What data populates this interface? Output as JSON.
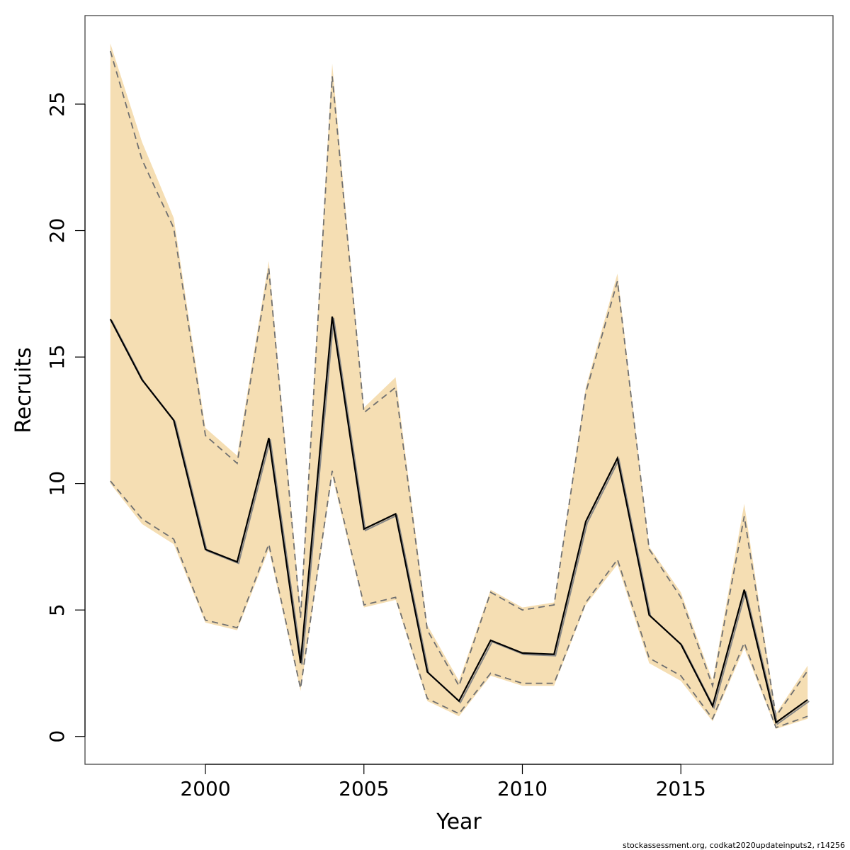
{
  "chart_data": {
    "type": "line",
    "title": "",
    "xlabel": "Year",
    "ylabel": "Recruits",
    "xlim": [
      1996.2,
      2019.8
    ],
    "ylim": [
      -1.1,
      28.5
    ],
    "xticks": [
      2000,
      2005,
      2010,
      2015
    ],
    "yticks": [
      0,
      5,
      10,
      15,
      20,
      25
    ],
    "grid": false,
    "legend": "none",
    "colors": {
      "band": "#f5deb3",
      "estimate": "#000000",
      "estimate_shadow": "#888888",
      "ci_line": "#707070"
    },
    "x": [
      1997,
      1998,
      1999,
      2000,
      2001,
      2002,
      2003,
      2004,
      2005,
      2006,
      2007,
      2008,
      2009,
      2010,
      2011,
      2012,
      2013,
      2014,
      2015,
      2016,
      2017,
      2018,
      2019
    ],
    "series": [
      {
        "role": "band_upper",
        "values": [
          27.4,
          23.5,
          20.5,
          12.2,
          11.1,
          18.8,
          5.0,
          26.6,
          13.0,
          14.2,
          4.4,
          2.2,
          5.8,
          5.1,
          5.3,
          13.8,
          18.3,
          7.5,
          5.7,
          2.2,
          9.2,
          0.9,
          2.8
        ]
      },
      {
        "role": "band_lower",
        "values": [
          10.0,
          8.4,
          7.6,
          4.5,
          4.2,
          7.4,
          1.8,
          10.3,
          5.1,
          5.4,
          1.4,
          0.8,
          2.4,
          2.0,
          2.0,
          5.2,
          6.8,
          2.9,
          2.2,
          0.6,
          3.5,
          0.3,
          0.7
        ]
      },
      {
        "role": "ci_upper",
        "values": [
          27.1,
          22.8,
          20.1,
          11.9,
          10.8,
          18.5,
          4.7,
          26.1,
          12.8,
          13.8,
          4.2,
          2.0,
          5.7,
          5.0,
          5.2,
          13.6,
          18.0,
          7.4,
          5.5,
          2.0,
          8.7,
          0.8,
          2.6
        ]
      },
      {
        "role": "ci_lower",
        "values": [
          10.1,
          8.6,
          7.8,
          4.6,
          4.3,
          7.6,
          1.9,
          10.5,
          5.2,
          5.5,
          1.5,
          0.9,
          2.5,
          2.1,
          2.1,
          5.3,
          7.0,
          3.1,
          2.4,
          0.7,
          3.7,
          0.35,
          0.8
        ]
      },
      {
        "role": "estimate",
        "values": [
          16.5,
          14.1,
          12.5,
          7.4,
          6.9,
          11.8,
          2.9,
          16.6,
          8.2,
          8.8,
          2.55,
          1.4,
          3.8,
          3.3,
          3.25,
          8.5,
          11.0,
          4.8,
          3.65,
          1.2,
          5.8,
          0.55,
          1.45
        ]
      }
    ]
  },
  "footer": {
    "credit": "stockassessment.org, codkat2020updateinputs2, r14256"
  }
}
